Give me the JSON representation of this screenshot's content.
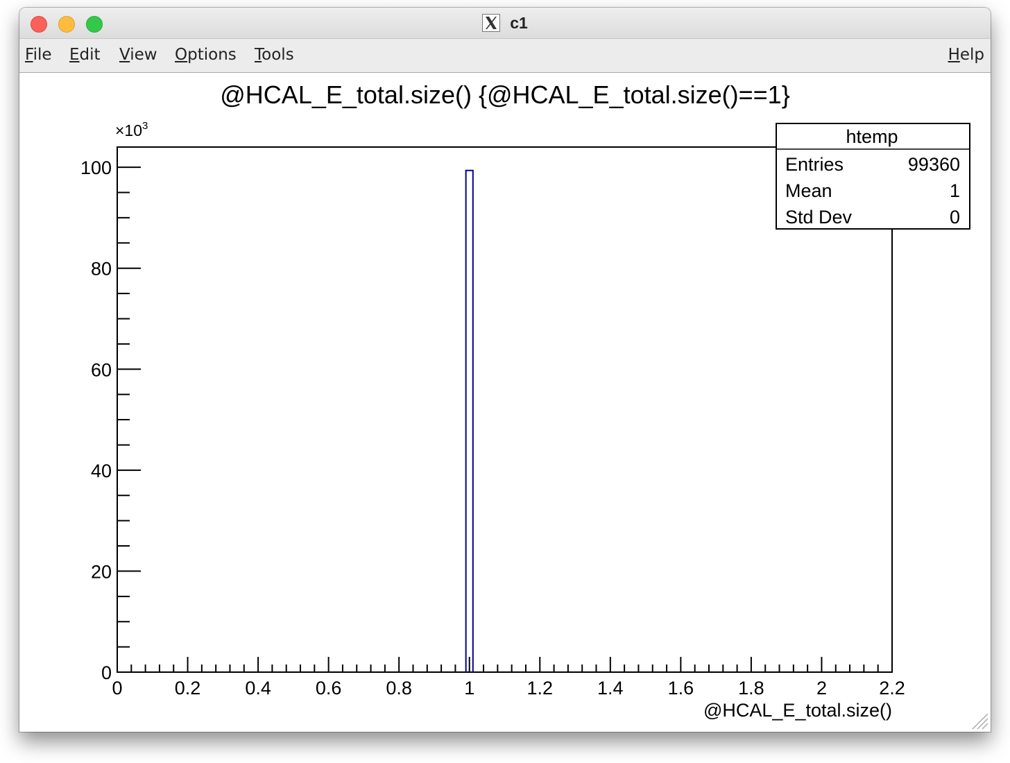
{
  "window": {
    "title": "c1"
  },
  "menubar": {
    "items": [
      {
        "accel": "F",
        "rest": "ile"
      },
      {
        "accel": "E",
        "rest": "dit"
      },
      {
        "accel": "V",
        "rest": "iew"
      },
      {
        "accel": "O",
        "rest": "ptions"
      },
      {
        "accel": "T",
        "rest": "ools"
      }
    ],
    "help": {
      "accel": "H",
      "rest": "elp"
    }
  },
  "stats_box": {
    "name": "htemp",
    "rows": [
      {
        "label": "Entries",
        "value": "99360"
      },
      {
        "label": "Mean",
        "value": "1"
      },
      {
        "label": "Std Dev",
        "value": "0"
      }
    ]
  },
  "chart_data": {
    "type": "bar",
    "title": "@HCAL_E_total.size() {@HCAL_E_total.size()==1}",
    "xlabel": "@HCAL_E_total.size()",
    "ylabel": "",
    "y_multiplier": "×10",
    "y_multiplier_exponent": "3",
    "xlim": [
      0,
      2.2
    ],
    "ylim": [
      0,
      104
    ],
    "x_ticks": [
      "0",
      "0.2",
      "0.4",
      "0.6",
      "0.8",
      "1",
      "1.2",
      "1.4",
      "1.6",
      "1.8",
      "2",
      "2.2"
    ],
    "y_ticks": [
      "0",
      "20",
      "40",
      "60",
      "80",
      "100"
    ],
    "bins": [
      {
        "low": 0.99,
        "high": 1.01,
        "value": 99.36
      }
    ],
    "line_color": "#000099",
    "grid": false
  }
}
